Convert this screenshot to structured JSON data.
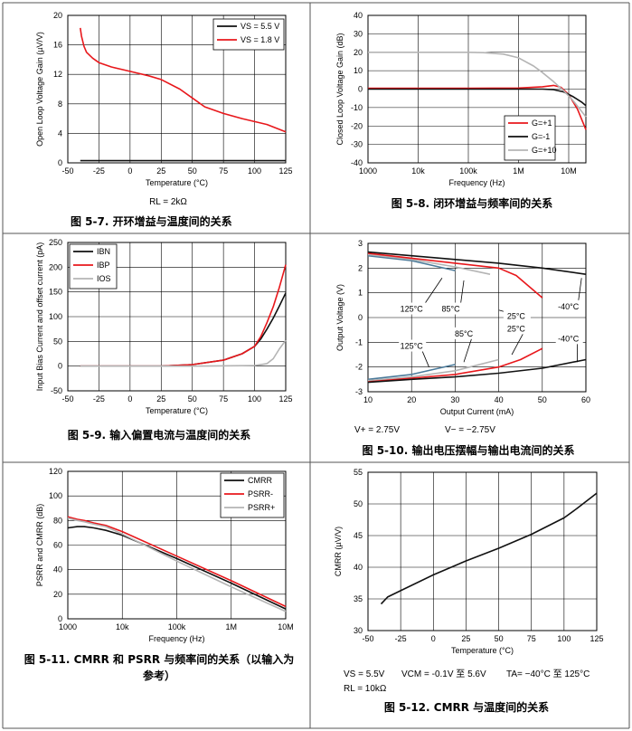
{
  "colors": {
    "red": "#e8171b",
    "black": "#111111",
    "gray": "#b4b4b4",
    "blue": "#4a7a9a"
  },
  "chart_data": [
    {
      "id": "fig7",
      "type": "line",
      "caption": "图 5-7. 开环增益与温度间的关系",
      "note": "RL = 2kΩ",
      "xlabel": "Temperature (°C)",
      "ylabel": "Open Loop Voltage Gain (µV/V)",
      "xlim": [
        -50,
        125
      ],
      "ylim": [
        0,
        20
      ],
      "xticks": [
        -50,
        -25,
        0,
        25,
        50,
        75,
        100,
        125
      ],
      "yticks": [
        0,
        4,
        8,
        12,
        16,
        20
      ],
      "grid": true,
      "legend_position": "top-right",
      "series": [
        {
          "name": "VS = 5.5 V",
          "color": "black",
          "x": [
            -40,
            -25,
            0,
            25,
            50,
            75,
            100,
            125
          ],
          "y": [
            0.3,
            0.3,
            0.3,
            0.3,
            0.3,
            0.3,
            0.3,
            0.3
          ]
        },
        {
          "name": "VS = 1.8 V",
          "color": "red",
          "x": [
            -40,
            -39,
            -37,
            -35,
            -30,
            -25,
            -15,
            0,
            15,
            25,
            40,
            50,
            60,
            75,
            90,
            100,
            110,
            125
          ],
          "y": [
            18.3,
            17.2,
            15.8,
            15.0,
            14.2,
            13.6,
            13.0,
            12.4,
            11.8,
            11.3,
            10.0,
            8.8,
            7.6,
            6.7,
            6.0,
            5.6,
            5.2,
            4.2
          ]
        }
      ]
    },
    {
      "id": "fig8",
      "type": "line",
      "caption": "图 5-8. 闭环增益与频率间的关系",
      "xlabel": "Frequency (Hz)",
      "ylabel": "Closed Loop Voltage Gain (dB)",
      "xscale": "log",
      "xlim": [
        1000,
        22000000
      ],
      "ylim": [
        -40,
        40
      ],
      "xticks": [
        1000,
        10000,
        100000,
        1000000,
        10000000
      ],
      "xtick_labels": [
        "1000",
        "10k",
        "100k",
        "1M",
        "10M"
      ],
      "yticks": [
        -40,
        -30,
        -20,
        -10,
        0,
        10,
        20,
        30,
        40
      ],
      "grid": true,
      "legend_position": "bottom-right",
      "series": [
        {
          "name": "G=+1",
          "color": "red",
          "x": [
            1000,
            100000,
            1000000,
            3000000,
            5000000,
            7000000,
            10000000,
            15000000,
            22000000
          ],
          "y": [
            0.5,
            0.5,
            0.6,
            1.3,
            2.0,
            1.0,
            -3,
            -11,
            -22
          ]
        },
        {
          "name": "G=-1",
          "color": "black",
          "x": [
            1000,
            100000,
            1000000,
            3000000,
            5000000,
            8000000,
            12000000,
            18000000,
            22000000
          ],
          "y": [
            0,
            0,
            0,
            0,
            -0.3,
            -1.5,
            -4,
            -7,
            -9
          ]
        },
        {
          "name": "G=+10",
          "color": "gray",
          "x": [
            1000,
            100000,
            200000,
            500000,
            1000000,
            2000000,
            3000000,
            5000000,
            8000000,
            12000000,
            22000000
          ],
          "y": [
            20,
            20,
            19.8,
            19,
            17,
            12.5,
            9,
            4,
            -1,
            -6,
            -15
          ]
        }
      ]
    },
    {
      "id": "fig9",
      "type": "line",
      "caption": "图 5-9. 输入偏置电流与温度间的关系",
      "xlabel": "Temperature (°C)",
      "ylabel": "Input Bias Current and offset current (pA)",
      "xlim": [
        -50,
        125
      ],
      "ylim": [
        -50,
        250
      ],
      "xticks": [
        -50,
        -25,
        0,
        25,
        50,
        75,
        100,
        125
      ],
      "yticks": [
        -50,
        0,
        50,
        100,
        150,
        200,
        250
      ],
      "grid": true,
      "legend_position": "top-left",
      "series": [
        {
          "name": "IBN",
          "color": "black",
          "x": [
            -40,
            0,
            25,
            50,
            75,
            90,
            100,
            105,
            110,
            115,
            120,
            125
          ],
          "y": [
            0,
            0,
            0,
            3,
            12,
            25,
            40,
            55,
            75,
            97,
            122,
            148
          ]
        },
        {
          "name": "IBP",
          "color": "red",
          "x": [
            -40,
            0,
            25,
            50,
            75,
            90,
            100,
            105,
            110,
            115,
            120,
            125
          ],
          "y": [
            0,
            0,
            0,
            3,
            12,
            25,
            40,
            60,
            88,
            120,
            160,
            205
          ]
        },
        {
          "name": "IOS",
          "color": "gray",
          "x": [
            -40,
            0,
            50,
            100,
            110,
            115,
            120,
            125
          ],
          "y": [
            0,
            0,
            0,
            1,
            5,
            15,
            35,
            52
          ]
        }
      ]
    },
    {
      "id": "fig10",
      "type": "line",
      "caption": "图 5-10. 输出电压摆幅与输出电流间的关系",
      "note_left": "V+ = 2.75V",
      "note_right": "V− = −2.75V",
      "xlabel": "Output Current (mA)",
      "ylabel": "Output Voltage (V)",
      "xlim": [
        10,
        60
      ],
      "ylim": [
        -3,
        3
      ],
      "xticks": [
        10,
        20,
        30,
        40,
        50,
        60
      ],
      "yticks": [
        -3,
        -2,
        -1,
        0,
        1,
        2,
        3
      ],
      "grid": true,
      "annotations": [
        "125°C",
        "85°C",
        "25°C",
        "-40°C",
        "125°C",
        "85°C",
        "25°C",
        "-40°C"
      ],
      "series": [
        {
          "name": "125°C",
          "color": "blue",
          "x": [
            10,
            20,
            30
          ],
          "y": [
            2.5,
            2.3,
            1.9
          ]
        },
        {
          "name": "85°C",
          "color": "gray",
          "x": [
            10,
            20,
            30,
            38
          ],
          "y": [
            2.55,
            2.35,
            2.05,
            1.75
          ]
        },
        {
          "name": "25°C",
          "color": "red",
          "x": [
            10,
            20,
            30,
            40,
            44,
            50
          ],
          "y": [
            2.6,
            2.4,
            2.2,
            2.0,
            1.7,
            0.8
          ]
        },
        {
          "name": "-40°C",
          "color": "black",
          "x": [
            10,
            20,
            30,
            40,
            50,
            60
          ],
          "y": [
            2.65,
            2.5,
            2.35,
            2.2,
            2.0,
            1.75
          ]
        },
        {
          "name": "125°C",
          "color": "blue",
          "x": [
            10,
            20,
            30
          ],
          "y": [
            -2.5,
            -2.3,
            -1.9
          ]
        },
        {
          "name": "85°C",
          "color": "gray",
          "x": [
            10,
            20,
            30,
            40
          ],
          "y": [
            -2.55,
            -2.4,
            -2.15,
            -1.7
          ]
        },
        {
          "name": "25°C",
          "color": "red",
          "x": [
            10,
            20,
            30,
            40,
            45,
            50
          ],
          "y": [
            -2.6,
            -2.45,
            -2.3,
            -2.0,
            -1.7,
            -1.25
          ]
        },
        {
          "name": "-40°C",
          "color": "black",
          "x": [
            10,
            20,
            30,
            40,
            50,
            60
          ],
          "y": [
            -2.62,
            -2.5,
            -2.4,
            -2.25,
            -2.05,
            -1.7
          ]
        }
      ]
    },
    {
      "id": "fig11",
      "type": "line",
      "caption": "图 5-11. CMRR 和 PSRR 与频率间的关系（以输入为参考）",
      "xlabel": "Frequency (Hz)",
      "ylabel": "PSRR and CMRR (dB)",
      "xscale": "log",
      "xlim": [
        1000,
        10000000
      ],
      "ylim": [
        0,
        120
      ],
      "xticks": [
        1000,
        10000,
        100000,
        1000000,
        10000000
      ],
      "xtick_labels": [
        "1000",
        "10k",
        "100k",
        "1M",
        "10M"
      ],
      "yticks": [
        0,
        20,
        40,
        60,
        80,
        100,
        120
      ],
      "grid": true,
      "legend_position": "top-right",
      "series": [
        {
          "name": "CMRR",
          "color": "black",
          "x": [
            1000,
            1500,
            2000,
            3000,
            5000,
            10000,
            100000,
            1000000,
            10000000
          ],
          "y": [
            74,
            75,
            75,
            74,
            72,
            68,
            49,
            29,
            8
          ]
        },
        {
          "name": "PSRR-",
          "color": "red",
          "x": [
            1000,
            1500,
            2000,
            3000,
            5000,
            10000,
            100000,
            1000000,
            10000000
          ],
          "y": [
            83,
            81,
            80,
            78,
            76,
            71,
            51,
            31,
            10
          ]
        },
        {
          "name": "PSRR+",
          "color": "gray",
          "x": [
            1000,
            1500,
            2000,
            3000,
            5000,
            10000,
            100000,
            1000000,
            10000000
          ],
          "y": [
            82,
            80,
            79,
            77,
            75,
            69,
            47,
            26,
            6
          ]
        }
      ]
    },
    {
      "id": "fig12",
      "type": "line",
      "caption": "图 5-12. CMRR 与温度间的关系",
      "note_vs": "VS = 5.5V",
      "note_vcm": "VCM = -0.1V 至 5.6V",
      "note_ta": "TA= −40°C 至 125°C",
      "note_rl": "RL = 10kΩ",
      "xlabel": "Temperature (°C)",
      "ylabel": "CMRR (µV/V)",
      "xlim": [
        -50,
        125
      ],
      "ylim": [
        30,
        55
      ],
      "xticks": [
        -50,
        -25,
        0,
        25,
        50,
        75,
        100,
        125
      ],
      "yticks": [
        30,
        35,
        40,
        45,
        50,
        55
      ],
      "grid": true,
      "series": [
        {
          "name": "CMRR",
          "color": "black",
          "x": [
            -40,
            -35,
            -25,
            0,
            25,
            50,
            75,
            100,
            110,
            125
          ],
          "y": [
            34.2,
            35.3,
            36.3,
            38.8,
            41.0,
            43.0,
            45.2,
            47.8,
            49.3,
            51.7
          ]
        }
      ]
    }
  ]
}
